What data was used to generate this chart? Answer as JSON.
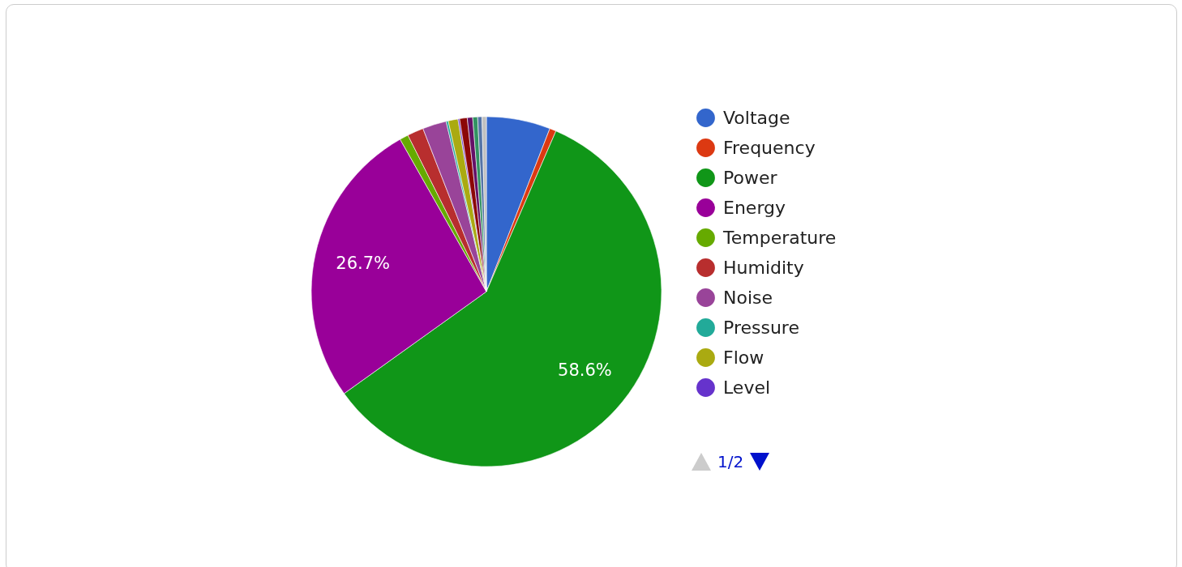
{
  "chart_data": {
    "type": "pie",
    "categories": [
      "Voltage",
      "Frequency",
      "Power",
      "Energy",
      "Temperature",
      "Humidity",
      "Noise",
      "Pressure",
      "Flow",
      "Level",
      null,
      null,
      null,
      null,
      null
    ],
    "values": [
      5.9,
      0.6,
      58.6,
      26.7,
      0.8,
      1.5,
      2.2,
      0.2,
      0.9,
      0.15,
      0.7,
      0.5,
      0.45,
      0.4,
      0.4
    ],
    "colors": [
      "#3366cc",
      "#dc3912",
      "#109618",
      "#990099",
      "#66aa00",
      "#b82e2e",
      "#994499",
      "#22aa99",
      "#aaaa11",
      "#6633cc",
      "#8b0707",
      "#651067",
      "#329262",
      "#5574a6",
      "#c0c0c0"
    ],
    "value_labels": [
      null,
      null,
      "58.6%",
      "26.7%",
      null,
      null,
      null,
      null,
      null,
      null,
      null,
      null,
      null,
      null,
      null
    ],
    "legend": "right",
    "annotations": [
      "1/2"
    ]
  }
}
